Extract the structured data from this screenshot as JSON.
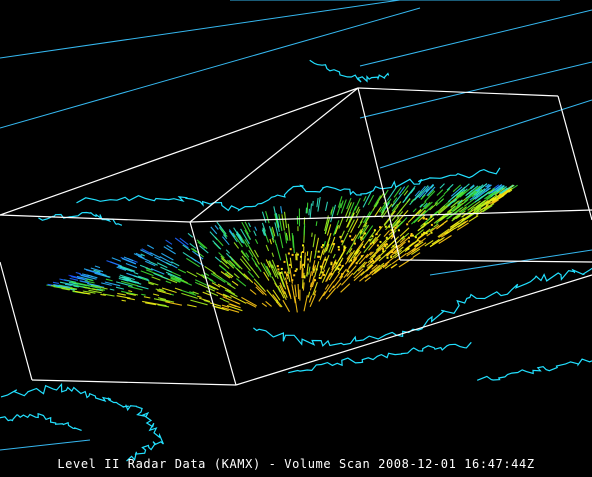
{
  "caption": "Level II Radar Data (KAMX) - Volume Scan 2008-12-01 16:47:44Z",
  "colors": {
    "background": "#000000",
    "map_lines": "#35b8f0",
    "coastline": "#22e0ff",
    "bounding_box": "#ffffff",
    "reflectivity_scale": [
      "#0a14c8",
      "#1e64ff",
      "#28b4ff",
      "#30e6c8",
      "#3cdc32",
      "#a0f01e",
      "#f0f014",
      "#ffc814"
    ]
  }
}
